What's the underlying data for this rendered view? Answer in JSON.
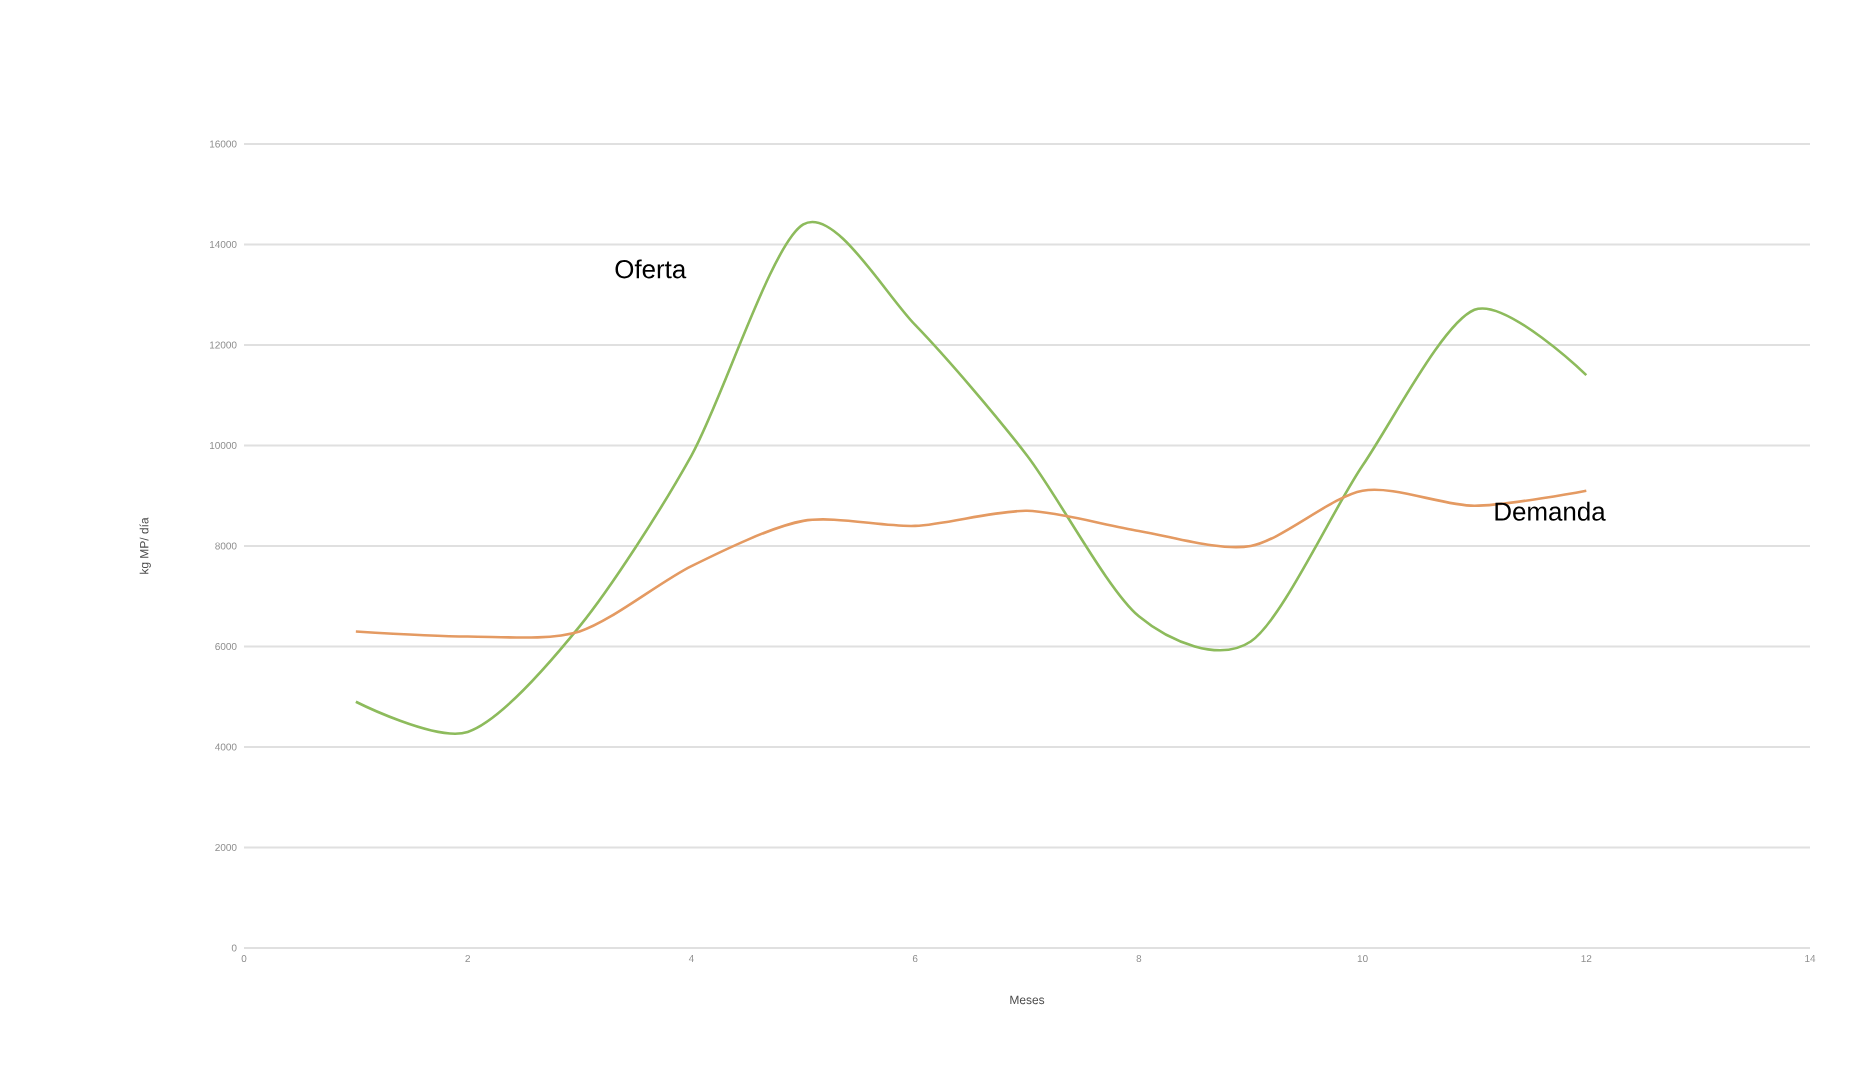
{
  "chart_data": {
    "type": "line",
    "xlabel": "Meses",
    "ylabel": "kg MP/ día",
    "x": [
      1,
      2,
      3,
      4,
      5,
      6,
      7,
      8,
      9,
      10,
      11,
      12
    ],
    "series": [
      {
        "name": "Oferta",
        "color": "#8dbb5c",
        "values": [
          4900,
          4300,
          6400,
          9800,
          14400,
          12400,
          9800,
          6600,
          6100,
          9600,
          12700,
          11400
        ]
      },
      {
        "name": "Demanda",
        "color": "#e49a62",
        "values": [
          6300,
          6200,
          6300,
          7600,
          8500,
          8400,
          8700,
          8300,
          8000,
          9100,
          8800,
          9100
        ]
      }
    ],
    "xlim": [
      0,
      14
    ],
    "xticks": [
      0,
      2,
      4,
      6,
      8,
      10,
      12,
      14
    ],
    "ylim": [
      0,
      16000
    ],
    "yticks": [
      0,
      2000,
      4000,
      6000,
      8000,
      10000,
      12000,
      14000,
      16000
    ],
    "grid": "y"
  }
}
